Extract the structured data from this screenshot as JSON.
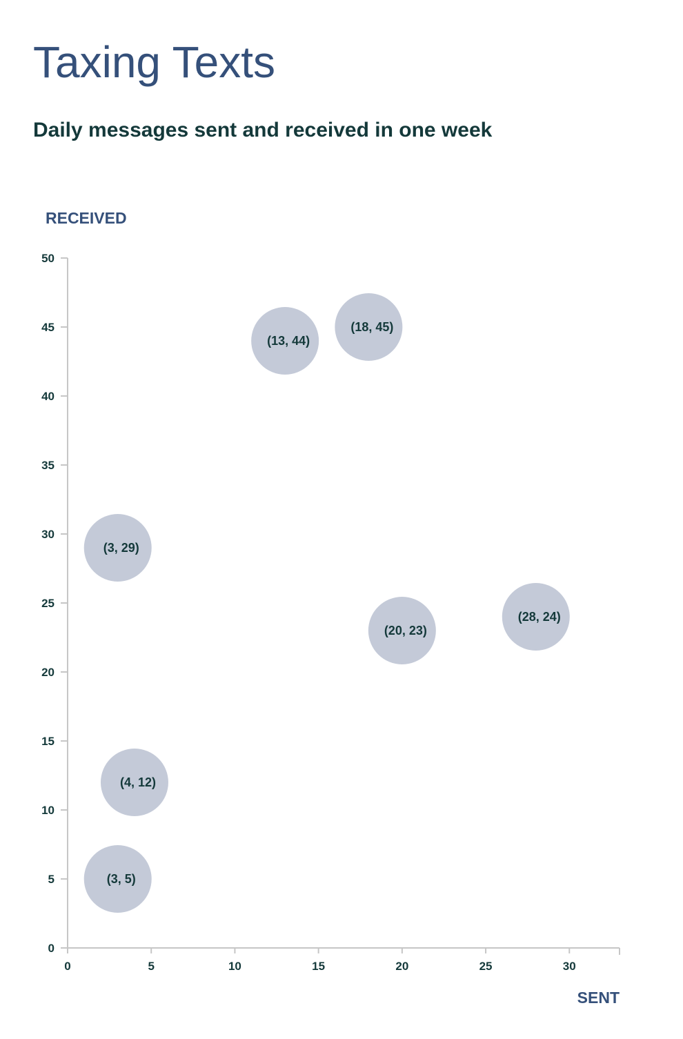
{
  "header": {
    "title": "Taxing Texts",
    "subtitle": "Daily messages sent and received in one week"
  },
  "colors": {
    "title": "#35507a",
    "subtitle": "#14393a",
    "axis_title": "#35507a",
    "tick_text": "#14393a",
    "axis_line": "#c6c6c6",
    "bubble_fill": "#c4cad8",
    "point_label": "#14393a"
  },
  "chart_data": {
    "type": "scatter",
    "xlabel": "SENT",
    "ylabel": "RECEIVED",
    "xlim": [
      0,
      33
    ],
    "ylim": [
      0,
      50
    ],
    "x_ticks": [
      0,
      5,
      10,
      15,
      20,
      25,
      30
    ],
    "y_ticks": [
      0,
      5,
      10,
      15,
      20,
      25,
      30,
      35,
      40,
      45,
      50
    ],
    "grid": false,
    "legend": "none",
    "points": [
      {
        "x": 13,
        "y": 44,
        "label": "(13, 44)"
      },
      {
        "x": 18,
        "y": 45,
        "label": "(18, 45)"
      },
      {
        "x": 3,
        "y": 29,
        "label": "(3, 29)"
      },
      {
        "x": 20,
        "y": 23,
        "label": "(20, 23)"
      },
      {
        "x": 28,
        "y": 24,
        "label": "(28, 24)"
      },
      {
        "x": 4,
        "y": 12,
        "label": "(4, 12)"
      },
      {
        "x": 3,
        "y": 5,
        "label": "(3, 5)"
      }
    ]
  }
}
